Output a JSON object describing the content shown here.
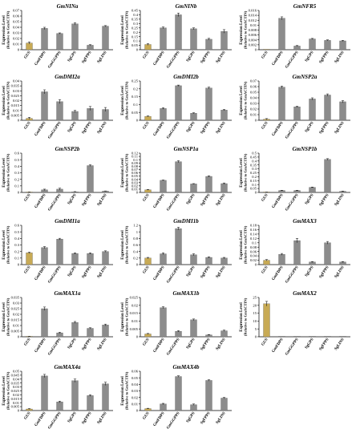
{
  "ylabel_line1": "Expression Level",
  "ylabel_line2": "(Relative to GmACTIN)",
  "colors": {
    "gus": "#c8aa55",
    "other": "#8c8c8c",
    "axis": "#000000"
  },
  "categories": [
    "GUS",
    "GmFDPS",
    "GmGGPPS",
    "SgGPS",
    "SgFPPS",
    "SgLINS"
  ],
  "chart_data": [
    {
      "type": "bar",
      "title": "GmNINa",
      "categories": [
        "GUS",
        "GmFDPS",
        "GmGGPPS",
        "SgGPS",
        "SgFPPS",
        "SgLINS"
      ],
      "values": [
        0.012,
        0.038,
        0.029,
        0.046,
        0.008,
        0.042
      ],
      "err": [
        0.002,
        0.002,
        0.001,
        0.002,
        0.001,
        0.001
      ],
      "ylim": [
        0,
        0.07
      ],
      "yticks": [
        "0",
        "0.01",
        "0.02",
        "0.03",
        "0.04",
        "0.05",
        "0.06",
        "0.07"
      ]
    },
    {
      "type": "bar",
      "title": "GmNINb",
      "categories": [
        "GUS",
        "GmFDPS",
        "GmGGPPS",
        "SgGPS",
        "SgFPPS",
        "SgLINS"
      ],
      "values": [
        0.06,
        0.25,
        0.4,
        0.24,
        0.12,
        0.21
      ],
      "err": [
        0.01,
        0.01,
        0.02,
        0.01,
        0.01,
        0.02
      ],
      "ylim": [
        0,
        0.45
      ],
      "yticks": [
        "0",
        "0.05",
        "0.1",
        "0.15",
        "0.2",
        "0.25",
        "0.3",
        "0.35",
        "0.4",
        "0.45"
      ]
    },
    {
      "type": "bar",
      "title": "GmNFR5",
      "categories": [
        "GUS",
        "GmFDPS",
        "GmGGPPS",
        "SgGPS",
        "SgFPPS",
        "SgLINS"
      ],
      "values": [
        0.0001,
        0.0128,
        0.0015,
        0.0044,
        0.0038,
        0.0036
      ],
      "err": [
        0,
        0.0006,
        0.0002,
        0.0002,
        0.0002,
        0.0002
      ],
      "ylim": [
        0,
        0.016
      ],
      "yticks": [
        "0",
        "0.002",
        "0.004",
        "0.006",
        "0.008",
        "0.01",
        "0.012",
        "0.014",
        "0.016"
      ]
    },
    {
      "type": "bar",
      "title": "GmDMI2a",
      "categories": [
        "GUS",
        "GmFDPS",
        "GmGGPPS",
        "SgGPS",
        "SgFPPS",
        "SgLINS"
      ],
      "values": [
        0.002,
        0.029,
        0.019,
        0.009,
        0.012,
        0.011
      ],
      "err": [
        0.001,
        0.002,
        0.002,
        0.001,
        0.002,
        0.002
      ],
      "ylim": [
        0,
        0.04
      ],
      "yticks": [
        "0",
        "0.005",
        "0.01",
        "0.015",
        "0.02",
        "0.025",
        "0.03",
        "0.035",
        "0.04"
      ]
    },
    {
      "type": "bar",
      "title": "GmDMI2b",
      "categories": [
        "GUS",
        "GmFDPS",
        "GmGGPPS",
        "SgGPS",
        "SgFPPS",
        "SgLINS"
      ],
      "values": [
        0.025,
        0.075,
        0.22,
        0.045,
        0.205,
        0.065
      ],
      "err": [
        0.003,
        0.005,
        0.004,
        0.003,
        0.006,
        0.004
      ],
      "ylim": [
        0,
        0.25
      ],
      "yticks": [
        "0",
        "0.05",
        "0.1",
        "0.15",
        "0.2",
        "0.25"
      ]
    },
    {
      "type": "bar",
      "title": "GmNSP2a",
      "categories": [
        "GUS",
        "GmFDPS",
        "GmGGPPS",
        "SgGPS",
        "SgFPPS",
        "SgLINS"
      ],
      "values": [
        0.002,
        0.059,
        0.024,
        0.038,
        0.045,
        0.033
      ],
      "err": [
        0.001,
        0.002,
        0.001,
        0.002,
        0.002,
        0.002
      ],
      "ylim": [
        0,
        0.07
      ],
      "yticks": [
        "0",
        "0.01",
        "0.02",
        "0.03",
        "0.04",
        "0.05",
        "0.06",
        "0.07"
      ]
    },
    {
      "type": "bar",
      "title": "GmNSP2b",
      "categories": [
        "GUS",
        "GmFDPS",
        "GmGGPPS",
        "SgGPS",
        "SgFPPS",
        "SgLINS"
      ],
      "values": [
        0.005,
        0.04,
        0.05,
        0.01,
        0.41,
        0.02
      ],
      "err": [
        0.002,
        0.01,
        0.015,
        0.003,
        0.012,
        0.003
      ],
      "ylim": [
        0,
        0.6
      ],
      "yticks": [
        "0",
        "0.1",
        "0.2",
        "0.3",
        "0.4",
        "0.5",
        "0.6"
      ]
    },
    {
      "type": "bar",
      "title": "GmNSP1a",
      "categories": [
        "GUS",
        "GmFDPS",
        "GmGGPPS",
        "SgGPS",
        "SgFPPS",
        "SgLINS"
      ],
      "values": [
        0.008,
        0.037,
        0.094,
        0.026,
        0.049,
        0.027
      ],
      "err": [
        0.001,
        0.001,
        0.003,
        0.001,
        0.002,
        0.002
      ],
      "ylim": [
        0,
        0.12
      ],
      "yticks": [
        "0",
        "0.01",
        "0.02",
        "0.03",
        "0.04",
        "0.05",
        "0.06",
        "0.07",
        "0.08",
        "0.09",
        "0.1",
        "0.11",
        "0.12"
      ]
    },
    {
      "type": "bar",
      "title": "GmNSP1b",
      "categories": [
        "GUS",
        "GmFDPS",
        "GmGGPPS",
        "SgGPS",
        "SgFPPS",
        "SgLINS"
      ],
      "values": [
        0.002,
        0.025,
        0.025,
        0.065,
        0.42,
        0.015
      ],
      "err": [
        0.001,
        0.003,
        0.003,
        0.004,
        0.01,
        0.003
      ],
      "ylim": [
        0,
        0.5
      ],
      "yticks": [
        "0",
        "0.05",
        "0.1",
        "0.15",
        "0.2",
        "0.25",
        "0.3",
        "0.35",
        "0.4",
        "0.45",
        "0.5"
      ]
    },
    {
      "type": "bar",
      "title": "GmDMI1a",
      "categories": [
        "GUS",
        "GmFDPS",
        "GmGGPPS",
        "SgGPS",
        "SgFPPS",
        "SgLINS"
      ],
      "values": [
        0.18,
        0.26,
        0.39,
        0.17,
        0.17,
        0.2
      ],
      "err": [
        0.01,
        0.015,
        0.012,
        0.01,
        0.01,
        0.01
      ],
      "ylim": [
        0,
        0.6
      ],
      "yticks": [
        "0",
        "0.1",
        "0.2",
        "0.3",
        "0.4",
        "0.5",
        "0.6"
      ]
    },
    {
      "type": "bar",
      "title": "GmDMI1b",
      "categories": [
        "GUS",
        "GmFDPS",
        "GmGGPPS",
        "SgGPS",
        "SgFPPS",
        "SgLINS"
      ],
      "values": [
        0.2,
        0.33,
        1.1,
        0.3,
        0.22,
        0.2
      ],
      "err": [
        0.02,
        0.03,
        0.04,
        0.03,
        0.02,
        0.02
      ],
      "ylim": [
        0,
        1.2
      ],
      "yticks": [
        "0",
        "0.2",
        "0.4",
        "0.6",
        "0.8",
        "1",
        "1.2"
      ]
    },
    {
      "type": "bar",
      "title": "GmMAX3",
      "categories": [
        "GUS",
        "GmFDPS",
        "GmGGPPS",
        "SgGPS",
        "SgFPPS",
        "SgLINS"
      ],
      "values": [
        0.02,
        0.047,
        0.11,
        0.012,
        0.1,
        0.012
      ],
      "err": [
        0.003,
        0.004,
        0.01,
        0.002,
        0.006,
        0.002
      ],
      "ylim": [
        0,
        0.18
      ],
      "yticks": [
        "0",
        "0.02",
        "0.04",
        "0.06",
        "0.08",
        "0.1",
        "0.12",
        "0.14",
        "0.16",
        "0.18"
      ]
    },
    {
      "type": "bar",
      "title": "GmMAX1a",
      "categories": [
        "GUS",
        "GmFDPS",
        "GmGGPPS",
        "SgGPS",
        "SgFPPS",
        "SgLINS"
      ],
      "values": [
        0.0003,
        0.025,
        0.0035,
        0.0128,
        0.0075,
        0.0105
      ],
      "err": [
        0.0001,
        0.0015,
        0.0005,
        0.0008,
        0.0005,
        0.0008
      ],
      "ylim": [
        0,
        0.035
      ],
      "yticks": [
        "0",
        "0.005",
        "0.01",
        "0.015",
        "0.02",
        "0.025",
        "0.03",
        "0.035"
      ]
    },
    {
      "type": "bar",
      "title": "GmMAX1b",
      "categories": [
        "GUS",
        "GmFDPS",
        "GmGGPPS",
        "SgGPS",
        "SgFPPS",
        "SgLINS"
      ],
      "values": [
        0.0018,
        0.0185,
        0.0035,
        0.0108,
        0.0012,
        0.0038
      ],
      "err": [
        0.0003,
        0.0006,
        0.0004,
        0.0005,
        0.0002,
        0.0004
      ],
      "ylim": [
        0,
        0.025
      ],
      "yticks": [
        "0",
        "0.005",
        "0.01",
        "0.015",
        "0.02",
        "0.025"
      ]
    },
    {
      "type": "bar",
      "title": "GmMAX2",
      "categories": [
        "GUS",
        "GmFDPS",
        "GmGGPPS",
        "SgGPS",
        "SgFPPS",
        "SgLINS"
      ],
      "values": [
        21,
        0,
        0,
        0,
        0,
        0
      ],
      "err": [
        1.5,
        0,
        0,
        0,
        0,
        0
      ],
      "ylim": [
        0,
        25
      ],
      "yticks": [
        "0",
        "5",
        "10",
        "15",
        "20",
        "25"
      ]
    },
    {
      "type": "bar",
      "title": "GmMAX4a",
      "categories": [
        "GUS",
        "GmFDPS",
        "GmGGPPS",
        "SgGPS",
        "SgFPPS",
        "SgLINS"
      ],
      "values": [
        0.002,
        0.044,
        0.011,
        0.038,
        0.019,
        0.034
      ],
      "err": [
        0.0005,
        0.002,
        0.001,
        0.002,
        0.001,
        0.002
      ],
      "ylim": [
        0,
        0.05
      ],
      "yticks": [
        "0",
        "0.005",
        "0.01",
        "0.015",
        "0.02",
        "0.025",
        "0.03",
        "0.035",
        "0.04",
        "0.045",
        "0.05"
      ]
    },
    {
      "type": "bar",
      "title": "GmMAX4b",
      "categories": [
        "GUS",
        "GmFDPS",
        "GmGGPPS",
        "SgGPS",
        "SgFPPS",
        "SgLINS"
      ],
      "values": [
        0.003,
        0.01,
        0.052,
        0.009,
        0.046,
        0.019
      ],
      "err": [
        0.0005,
        0.001,
        0.001,
        0.001,
        0.001,
        0.001
      ],
      "ylim": [
        0,
        0.06
      ],
      "yticks": [
        "0",
        "0.01",
        "0.02",
        "0.03",
        "0.04",
        "0.05",
        "0.06"
      ]
    }
  ]
}
